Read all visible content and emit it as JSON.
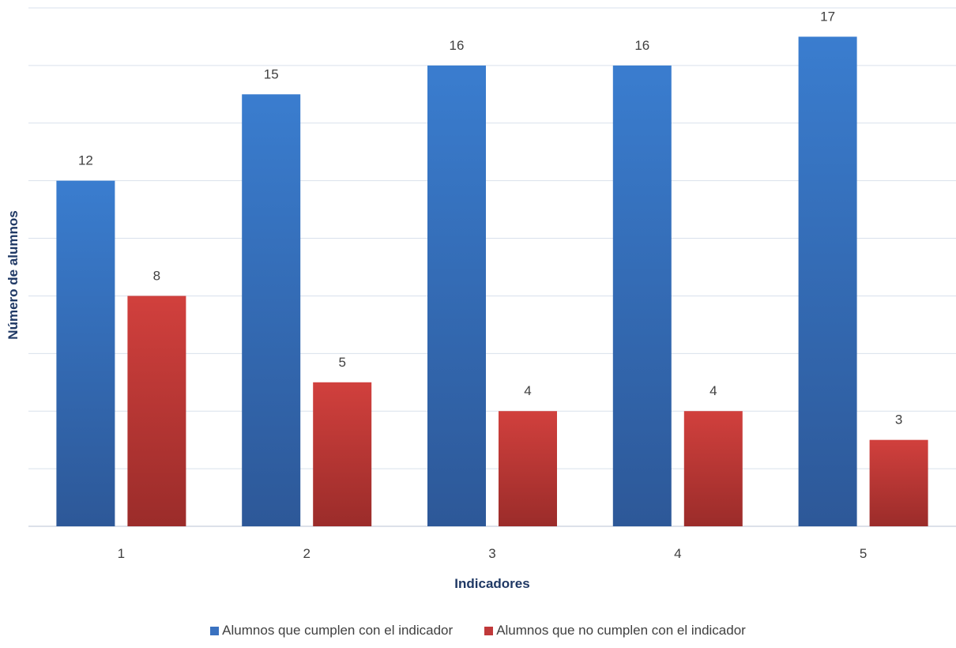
{
  "chart_data": {
    "type": "bar",
    "categories": [
      "1",
      "2",
      "3",
      "4",
      "5"
    ],
    "series": [
      {
        "name": "Alumnos que cumplen con el indicador",
        "values": [
          12,
          15,
          16,
          16,
          17
        ],
        "color": "#3a72c0"
      },
      {
        "name": "Alumnos que no cumplen con el indicador",
        "values": [
          8,
          5,
          4,
          4,
          3
        ],
        "color": "#c0393a"
      }
    ],
    "title": "",
    "xlabel": "Indicadores",
    "ylabel": "Número de alumnos",
    "ylim": [
      0,
      18
    ],
    "y_tick_labels_shown": false,
    "grid": true,
    "legend_position": "bottom"
  }
}
